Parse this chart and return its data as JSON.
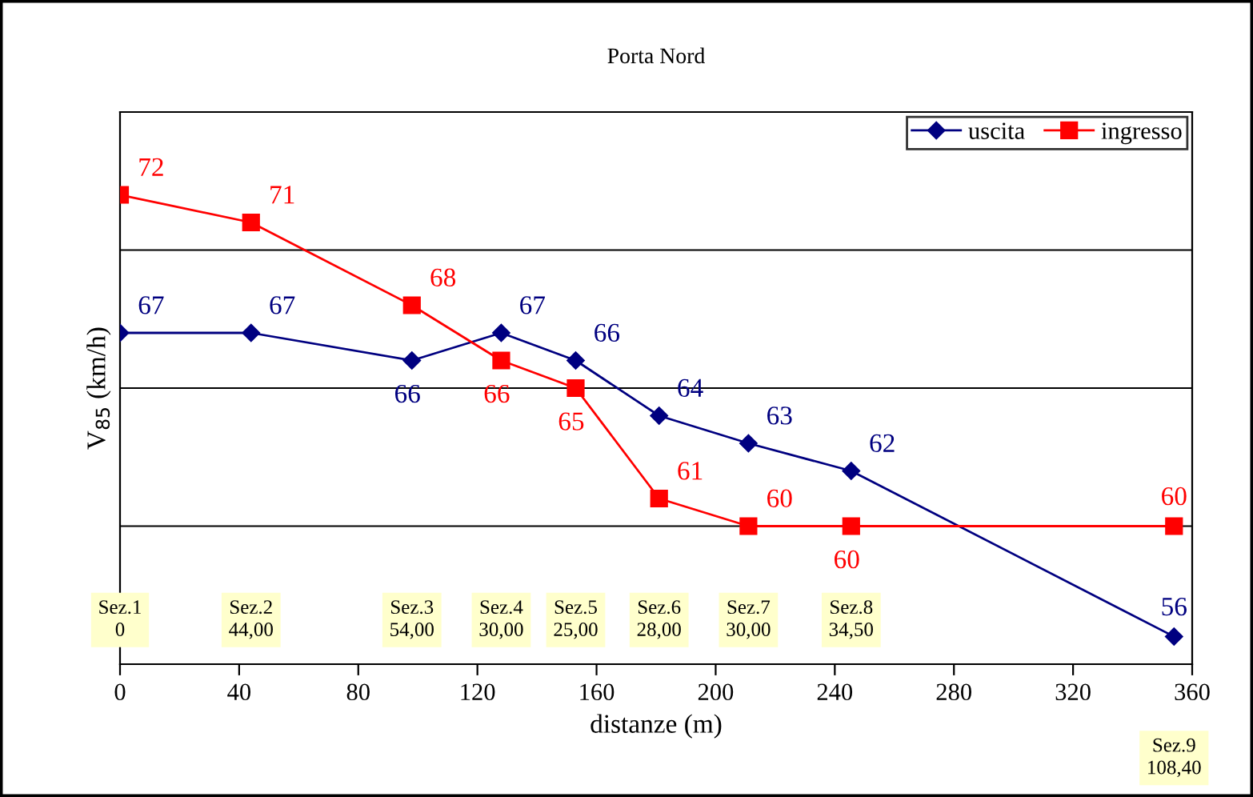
{
  "chart_data": {
    "type": "line",
    "title": "Porta Nord",
    "xlabel": "distanze (m)",
    "ylabel": "V$_{85}$ (km/h)",
    "x": [
      0,
      44,
      98,
      128,
      153,
      181,
      211,
      245.5,
      353.9
    ],
    "series": [
      {
        "name": "uscita",
        "color": "#000080",
        "marker": "diamond",
        "values": [
          67,
          67,
          66,
          67,
          66,
          64,
          63,
          62,
          56
        ]
      },
      {
        "name": "ingresso",
        "color": "#ff0000",
        "marker": "square",
        "values": [
          72,
          71,
          68,
          66,
          65,
          61,
          60,
          60,
          60
        ]
      }
    ],
    "xlim": [
      0,
      360
    ],
    "xticks": [
      0,
      40,
      80,
      120,
      160,
      200,
      240,
      280,
      320,
      360
    ],
    "ylim": [
      55,
      75
    ],
    "yticks": [
      {
        "value": 60,
        "label": null
      },
      {
        "value": 65,
        "label": null
      },
      {
        "value": 70,
        "label": null
      }
    ],
    "tick_labels": "x",
    "grid": "y",
    "legend": "top right",
    "data_labels": true,
    "line_style": "solid",
    "annotations": [
      "Sez.1\n0",
      "Sez.2\n44,00",
      "Sez.3\n54,00",
      "Sez.4\n30,00",
      "Sez.5\n25,00",
      "Sez.6\n28,00",
      "Sez.7\n30,00",
      "Sez.8\n34,50",
      "Sez.9\n108,40"
    ]
  }
}
